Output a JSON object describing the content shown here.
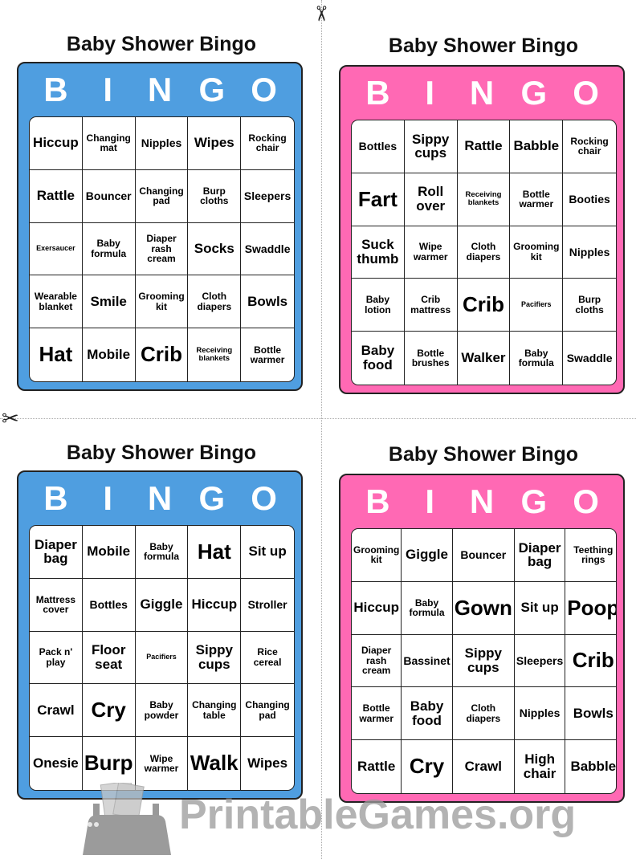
{
  "letters": [
    "B",
    "I",
    "N",
    "G",
    "O"
  ],
  "colors": {
    "blue": "#4f9ee0",
    "pink": "#ff69b4"
  },
  "cards": [
    {
      "title": "Baby Shower Bingo",
      "color": "blue",
      "cells": [
        "Hiccup",
        "Changing mat",
        "Nipples",
        "Wipes",
        "Rocking chair",
        "Rattle",
        "Bouncer",
        "Changing pad",
        "Burp cloths",
        "Sleepers",
        "Exersaucer",
        "Baby formula",
        "Diaper rash cream",
        "Socks",
        "Swaddle",
        "Wearable blanket",
        "Smile",
        "Grooming kit",
        "Cloth diapers",
        "Bowls",
        "Hat",
        "Mobile",
        "Crib",
        "Receiving blankets",
        "Bottle warmer"
      ]
    },
    {
      "title": "Baby Shower Bingo",
      "color": "pink",
      "cells": [
        "Bottles",
        "Sippy cups",
        "Rattle",
        "Babble",
        "Rocking chair",
        "Fart",
        "Roll over",
        "Receiving blankets",
        "Bottle warmer",
        "Booties",
        "Suck thumb",
        "Wipe warmer",
        "Cloth diapers",
        "Grooming kit",
        "Nipples",
        "Baby lotion",
        "Crib mattress",
        "Crib",
        "Pacifiers",
        "Burp cloths",
        "Baby food",
        "Bottle brushes",
        "Walker",
        "Baby formula",
        "Swaddle"
      ]
    },
    {
      "title": "Baby Shower Bingo",
      "color": "blue",
      "cells": [
        "Diaper bag",
        "Mobile",
        "Baby formula",
        "Hat",
        "Sit up",
        "Mattress cover",
        "Bottles",
        "Giggle",
        "Hiccup",
        "Stroller",
        "Pack n' play",
        "Floor seat",
        "Pacifiers",
        "Sippy cups",
        "Rice cereal",
        "Crawl",
        "Cry",
        "Baby powder",
        "Changing table",
        "Changing pad",
        "Onesie",
        "Burp",
        "Wipe warmer",
        "Walk",
        "Wipes"
      ]
    },
    {
      "title": "Baby Shower Bingo",
      "color": "pink",
      "cells": [
        "Grooming kit",
        "Giggle",
        "Bouncer",
        "Diaper bag",
        "Teething rings",
        "Hiccup",
        "Baby formula",
        "Gown",
        "Sit up",
        "Poop",
        "Diaper rash cream",
        "Bassinet",
        "Sippy cups",
        "Sleepers",
        "Crib",
        "Bottle warmer",
        "Baby food",
        "Cloth diapers",
        "Nipples",
        "Bowls",
        "Rattle",
        "Cry",
        "Crawl",
        "High chair",
        "Babble"
      ]
    }
  ],
  "watermark": "PrintableGames.org",
  "icons": {
    "scissors": "scissors-icon"
  }
}
